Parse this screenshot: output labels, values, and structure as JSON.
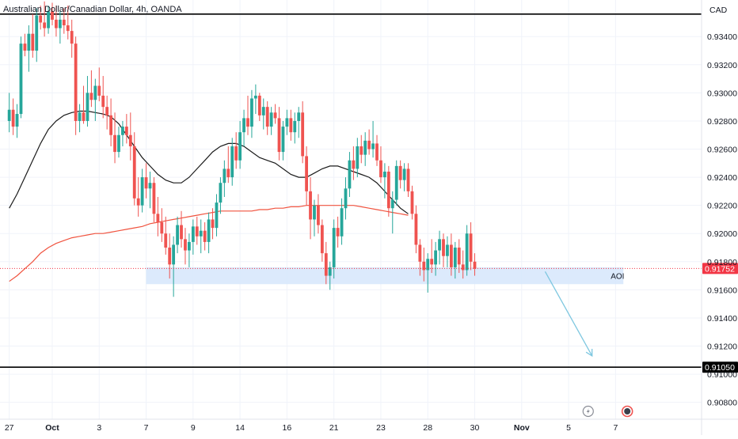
{
  "chart_data": {
    "type": "candlestick",
    "title": "Australian Dollar/Canadian Dollar, 4h, OANDA",
    "currency": "CAD",
    "ylim": [
      0.9068,
      0.9366
    ],
    "y_ticks": [
      "0.93400",
      "0.93200",
      "0.93000",
      "0.92800",
      "0.92600",
      "0.92400",
      "0.92200",
      "0.92000",
      "0.91800",
      "0.91600",
      "0.91400",
      "0.91200",
      "0.91000",
      "0.90800"
    ],
    "y_tick_values": [
      0.934,
      0.932,
      0.93,
      0.928,
      0.926,
      0.924,
      0.922,
      0.92,
      0.918,
      0.916,
      0.914,
      0.912,
      0.91,
      0.908
    ],
    "x_labels": [
      "27",
      "Oct",
      "3",
      "7",
      "9",
      "14",
      "16",
      "21",
      "23",
      "28",
      "30",
      "Nov",
      "5",
      "7"
    ],
    "x_label_index": [
      -11,
      0,
      12,
      24,
      36,
      48,
      60,
      72,
      84,
      96,
      108,
      120,
      132,
      144
    ],
    "colors": {
      "up": "#26a69a",
      "down": "#ef5350",
      "ma_fast": "#1b1b1b",
      "ma_slow": "#f0533f",
      "current": "#f23645",
      "aoi": "#d6e6fb",
      "arrow": "#7ec7e0",
      "hline": "#000000"
    },
    "current_price": {
      "value": 0.91752,
      "label": "0.91752"
    },
    "horizontal_lines": [
      {
        "value": 0.9356,
        "label": ""
      },
      {
        "value": 0.9105,
        "label": "0.91050"
      }
    ],
    "aoi_zone": {
      "label": "AOI",
      "from": 0.9164,
      "to": 0.9176,
      "start_index": 24,
      "end_index": 146
    },
    "projection_arrow": {
      "from": {
        "index": 126,
        "value": 0.9173
      },
      "to": {
        "index": 138,
        "value": 0.9113
      }
    },
    "candles": [
      {
        "o": 0.928,
        "h": 0.93,
        "l": 0.9272,
        "c": 0.9288
      },
      {
        "o": 0.9288,
        "h": 0.9296,
        "l": 0.927,
        "c": 0.9276
      },
      {
        "o": 0.9276,
        "h": 0.9292,
        "l": 0.9268,
        "c": 0.9285
      },
      {
        "o": 0.9285,
        "h": 0.934,
        "l": 0.9282,
        "c": 0.9335
      },
      {
        "o": 0.9335,
        "h": 0.9342,
        "l": 0.9326,
        "c": 0.933
      },
      {
        "o": 0.933,
        "h": 0.9348,
        "l": 0.9315,
        "c": 0.9342
      },
      {
        "o": 0.9342,
        "h": 0.9356,
        "l": 0.9325,
        "c": 0.933
      },
      {
        "o": 0.933,
        "h": 0.936,
        "l": 0.9322,
        "c": 0.9355
      },
      {
        "o": 0.9355,
        "h": 0.9362,
        "l": 0.9345,
        "c": 0.935
      },
      {
        "o": 0.935,
        "h": 0.9365,
        "l": 0.934,
        "c": 0.9346
      },
      {
        "o": 0.9346,
        "h": 0.9362,
        "l": 0.9342,
        "c": 0.9358
      },
      {
        "o": 0.9358,
        "h": 0.9364,
        "l": 0.9348,
        "c": 0.9352
      },
      {
        "o": 0.9352,
        "h": 0.9362,
        "l": 0.934,
        "c": 0.9346
      },
      {
        "o": 0.9346,
        "h": 0.9358,
        "l": 0.9335,
        "c": 0.9352
      },
      {
        "o": 0.9352,
        "h": 0.936,
        "l": 0.9342,
        "c": 0.9348
      },
      {
        "o": 0.9348,
        "h": 0.9362,
        "l": 0.9338,
        "c": 0.9344
      },
      {
        "o": 0.9344,
        "h": 0.9352,
        "l": 0.9325,
        "c": 0.9335
      },
      {
        "o": 0.9335,
        "h": 0.934,
        "l": 0.927,
        "c": 0.928
      },
      {
        "o": 0.928,
        "h": 0.9292,
        "l": 0.9272,
        "c": 0.9286
      },
      {
        "o": 0.9286,
        "h": 0.9305,
        "l": 0.9278,
        "c": 0.928
      },
      {
        "o": 0.928,
        "h": 0.9312,
        "l": 0.9276,
        "c": 0.93
      },
      {
        "o": 0.93,
        "h": 0.9316,
        "l": 0.929,
        "c": 0.9295
      },
      {
        "o": 0.9295,
        "h": 0.931,
        "l": 0.928,
        "c": 0.9305
      },
      {
        "o": 0.9305,
        "h": 0.9318,
        "l": 0.9294,
        "c": 0.9298
      },
      {
        "o": 0.9298,
        "h": 0.9312,
        "l": 0.9282,
        "c": 0.929
      },
      {
        "o": 0.929,
        "h": 0.9298,
        "l": 0.9274,
        "c": 0.9284
      },
      {
        "o": 0.9284,
        "h": 0.9296,
        "l": 0.9262,
        "c": 0.927
      },
      {
        "o": 0.927,
        "h": 0.9286,
        "l": 0.925,
        "c": 0.9258
      },
      {
        "o": 0.9258,
        "h": 0.9276,
        "l": 0.9254,
        "c": 0.927
      },
      {
        "o": 0.927,
        "h": 0.928,
        "l": 0.9262,
        "c": 0.9276
      },
      {
        "o": 0.9276,
        "h": 0.9285,
        "l": 0.9264,
        "c": 0.927
      },
      {
        "o": 0.927,
        "h": 0.9286,
        "l": 0.9252,
        "c": 0.9262
      },
      {
        "o": 0.9262,
        "h": 0.9272,
        "l": 0.922,
        "c": 0.9225
      },
      {
        "o": 0.9225,
        "h": 0.924,
        "l": 0.9212,
        "c": 0.922
      },
      {
        "o": 0.922,
        "h": 0.9246,
        "l": 0.9215,
        "c": 0.924
      },
      {
        "o": 0.924,
        "h": 0.925,
        "l": 0.9225,
        "c": 0.9232
      },
      {
        "o": 0.9232,
        "h": 0.9244,
        "l": 0.9218,
        "c": 0.9236
      },
      {
        "o": 0.9236,
        "h": 0.924,
        "l": 0.9208,
        "c": 0.9214
      },
      {
        "o": 0.9214,
        "h": 0.9226,
        "l": 0.9198,
        "c": 0.9208
      },
      {
        "o": 0.9208,
        "h": 0.9218,
        "l": 0.9194,
        "c": 0.92
      },
      {
        "o": 0.92,
        "h": 0.9212,
        "l": 0.9185,
        "c": 0.919
      },
      {
        "o": 0.919,
        "h": 0.92,
        "l": 0.9168,
        "c": 0.9178
      },
      {
        "o": 0.9178,
        "h": 0.9198,
        "l": 0.9155,
        "c": 0.9192
      },
      {
        "o": 0.9192,
        "h": 0.9212,
        "l": 0.9186,
        "c": 0.9206
      },
      {
        "o": 0.9206,
        "h": 0.9216,
        "l": 0.919,
        "c": 0.9196
      },
      {
        "o": 0.9196,
        "h": 0.9204,
        "l": 0.9178,
        "c": 0.9188
      },
      {
        "o": 0.9188,
        "h": 0.92,
        "l": 0.9176,
        "c": 0.9194
      },
      {
        "o": 0.9194,
        "h": 0.921,
        "l": 0.9185,
        "c": 0.9205
      },
      {
        "o": 0.9205,
        "h": 0.9212,
        "l": 0.9192,
        "c": 0.9198
      },
      {
        "o": 0.9198,
        "h": 0.921,
        "l": 0.9186,
        "c": 0.9202
      },
      {
        "o": 0.9202,
        "h": 0.9208,
        "l": 0.9188,
        "c": 0.9194
      },
      {
        "o": 0.9194,
        "h": 0.9215,
        "l": 0.9186,
        "c": 0.921
      },
      {
        "o": 0.921,
        "h": 0.9218,
        "l": 0.9196,
        "c": 0.9204
      },
      {
        "o": 0.9204,
        "h": 0.9228,
        "l": 0.9198,
        "c": 0.9222
      },
      {
        "o": 0.9222,
        "h": 0.924,
        "l": 0.9214,
        "c": 0.9236
      },
      {
        "o": 0.9236,
        "h": 0.9252,
        "l": 0.9226,
        "c": 0.9246
      },
      {
        "o": 0.9246,
        "h": 0.9262,
        "l": 0.9236,
        "c": 0.924
      },
      {
        "o": 0.924,
        "h": 0.9268,
        "l": 0.9234,
        "c": 0.9262
      },
      {
        "o": 0.9262,
        "h": 0.9272,
        "l": 0.9246,
        "c": 0.9252
      },
      {
        "o": 0.9252,
        "h": 0.928,
        "l": 0.9246,
        "c": 0.9272
      },
      {
        "o": 0.9272,
        "h": 0.9288,
        "l": 0.9262,
        "c": 0.9282
      },
      {
        "o": 0.9282,
        "h": 0.9298,
        "l": 0.927,
        "c": 0.9276
      },
      {
        "o": 0.9276,
        "h": 0.9302,
        "l": 0.9268,
        "c": 0.9296
      },
      {
        "o": 0.9296,
        "h": 0.9306,
        "l": 0.9285,
        "c": 0.9298
      },
      {
        "o": 0.9298,
        "h": 0.93,
        "l": 0.928,
        "c": 0.9284
      },
      {
        "o": 0.9284,
        "h": 0.9296,
        "l": 0.9274,
        "c": 0.929
      },
      {
        "o": 0.929,
        "h": 0.9294,
        "l": 0.927,
        "c": 0.9276
      },
      {
        "o": 0.9276,
        "h": 0.929,
        "l": 0.927,
        "c": 0.9286
      },
      {
        "o": 0.9286,
        "h": 0.9292,
        "l": 0.9278,
        "c": 0.9282
      },
      {
        "o": 0.9282,
        "h": 0.929,
        "l": 0.9252,
        "c": 0.9258
      },
      {
        "o": 0.9258,
        "h": 0.928,
        "l": 0.9252,
        "c": 0.9276
      },
      {
        "o": 0.9276,
        "h": 0.9288,
        "l": 0.927,
        "c": 0.9282
      },
      {
        "o": 0.9282,
        "h": 0.9288,
        "l": 0.9266,
        "c": 0.9272
      },
      {
        "o": 0.9272,
        "h": 0.9286,
        "l": 0.9264,
        "c": 0.928
      },
      {
        "o": 0.928,
        "h": 0.929,
        "l": 0.9268,
        "c": 0.9286
      },
      {
        "o": 0.9286,
        "h": 0.9294,
        "l": 0.925,
        "c": 0.9255
      },
      {
        "o": 0.9255,
        "h": 0.9262,
        "l": 0.922,
        "c": 0.923
      },
      {
        "o": 0.923,
        "h": 0.924,
        "l": 0.9196,
        "c": 0.921
      },
      {
        "o": 0.921,
        "h": 0.9224,
        "l": 0.9198,
        "c": 0.922
      },
      {
        "o": 0.922,
        "h": 0.9228,
        "l": 0.92,
        "c": 0.9206
      },
      {
        "o": 0.9206,
        "h": 0.921,
        "l": 0.918,
        "c": 0.9186
      },
      {
        "o": 0.9186,
        "h": 0.9194,
        "l": 0.9164,
        "c": 0.917
      },
      {
        "o": 0.917,
        "h": 0.918,
        "l": 0.916,
        "c": 0.9176
      },
      {
        "o": 0.9176,
        "h": 0.921,
        "l": 0.9168,
        "c": 0.9204
      },
      {
        "o": 0.9204,
        "h": 0.9212,
        "l": 0.919,
        "c": 0.9198
      },
      {
        "o": 0.9198,
        "h": 0.9225,
        "l": 0.9192,
        "c": 0.9218
      },
      {
        "o": 0.9218,
        "h": 0.924,
        "l": 0.921,
        "c": 0.9232
      },
      {
        "o": 0.9232,
        "h": 0.9258,
        "l": 0.9226,
        "c": 0.9252
      },
      {
        "o": 0.9252,
        "h": 0.9262,
        "l": 0.9238,
        "c": 0.9246
      },
      {
        "o": 0.9246,
        "h": 0.9268,
        "l": 0.924,
        "c": 0.9262
      },
      {
        "o": 0.9262,
        "h": 0.927,
        "l": 0.925,
        "c": 0.9256
      },
      {
        "o": 0.9256,
        "h": 0.9272,
        "l": 0.9248,
        "c": 0.9266
      },
      {
        "o": 0.9266,
        "h": 0.9274,
        "l": 0.9256,
        "c": 0.926
      },
      {
        "o": 0.926,
        "h": 0.928,
        "l": 0.9254,
        "c": 0.9264
      },
      {
        "o": 0.9264,
        "h": 0.927,
        "l": 0.9248,
        "c": 0.9252
      },
      {
        "o": 0.9252,
        "h": 0.9262,
        "l": 0.9236,
        "c": 0.924
      },
      {
        "o": 0.924,
        "h": 0.925,
        "l": 0.9225,
        "c": 0.9244
      },
      {
        "o": 0.9244,
        "h": 0.9248,
        "l": 0.9212,
        "c": 0.9218
      },
      {
        "o": 0.9218,
        "h": 0.923,
        "l": 0.92,
        "c": 0.9224
      },
      {
        "o": 0.9224,
        "h": 0.9252,
        "l": 0.922,
        "c": 0.9248
      },
      {
        "o": 0.9248,
        "h": 0.9252,
        "l": 0.9232,
        "c": 0.9238
      },
      {
        "o": 0.9238,
        "h": 0.925,
        "l": 0.923,
        "c": 0.9246
      },
      {
        "o": 0.9246,
        "h": 0.925,
        "l": 0.9226,
        "c": 0.923
      },
      {
        "o": 0.923,
        "h": 0.9234,
        "l": 0.921,
        "c": 0.9214
      },
      {
        "o": 0.9214,
        "h": 0.922,
        "l": 0.9186,
        "c": 0.9192
      },
      {
        "o": 0.9192,
        "h": 0.9196,
        "l": 0.917,
        "c": 0.918
      },
      {
        "o": 0.918,
        "h": 0.919,
        "l": 0.9166,
        "c": 0.9174
      },
      {
        "o": 0.9174,
        "h": 0.9186,
        "l": 0.9158,
        "c": 0.9182
      },
      {
        "o": 0.9182,
        "h": 0.9196,
        "l": 0.9172,
        "c": 0.9178
      },
      {
        "o": 0.9178,
        "h": 0.9194,
        "l": 0.917,
        "c": 0.9188
      },
      {
        "o": 0.9188,
        "h": 0.9202,
        "l": 0.9178,
        "c": 0.9196
      },
      {
        "o": 0.9196,
        "h": 0.92,
        "l": 0.9176,
        "c": 0.9184
      },
      {
        "o": 0.9184,
        "h": 0.9198,
        "l": 0.9176,
        "c": 0.9192
      },
      {
        "o": 0.9192,
        "h": 0.92,
        "l": 0.917,
        "c": 0.9176
      },
      {
        "o": 0.9176,
        "h": 0.9194,
        "l": 0.9168,
        "c": 0.919
      },
      {
        "o": 0.919,
        "h": 0.9196,
        "l": 0.9172,
        "c": 0.9178
      },
      {
        "o": 0.9178,
        "h": 0.9188,
        "l": 0.9168,
        "c": 0.9174
      },
      {
        "o": 0.9174,
        "h": 0.9206,
        "l": 0.917,
        "c": 0.92
      },
      {
        "o": 0.92,
        "h": 0.9208,
        "l": 0.9174,
        "c": 0.918
      },
      {
        "o": 0.918,
        "h": 0.9186,
        "l": 0.917,
        "c": 0.9175
      }
    ],
    "ma_fast": [
      [
        -11,
        0.9218
      ],
      [
        -9,
        0.9228
      ],
      [
        -7,
        0.924
      ],
      [
        -5,
        0.9252
      ],
      [
        -3,
        0.9264
      ],
      [
        -1,
        0.9274
      ],
      [
        1,
        0.928
      ],
      [
        3,
        0.9284
      ],
      [
        5,
        0.9286
      ],
      [
        7,
        0.9287
      ],
      [
        9,
        0.9287
      ],
      [
        11,
        0.9286
      ],
      [
        13,
        0.9285
      ],
      [
        15,
        0.9283
      ],
      [
        17,
        0.9278
      ],
      [
        19,
        0.927
      ],
      [
        21,
        0.9262
      ],
      [
        23,
        0.9254
      ],
      [
        25,
        0.9248
      ],
      [
        27,
        0.9242
      ],
      [
        29,
        0.9238
      ],
      [
        31,
        0.9236
      ],
      [
        33,
        0.9236
      ],
      [
        35,
        0.924
      ],
      [
        37,
        0.9246
      ],
      [
        39,
        0.9252
      ],
      [
        41,
        0.9258
      ],
      [
        43,
        0.9262
      ],
      [
        45,
        0.9264
      ],
      [
        47,
        0.9264
      ],
      [
        49,
        0.9262
      ],
      [
        51,
        0.9258
      ],
      [
        53,
        0.9254
      ],
      [
        55,
        0.9252
      ],
      [
        57,
        0.925
      ],
      [
        59,
        0.9246
      ],
      [
        61,
        0.9242
      ],
      [
        63,
        0.924
      ],
      [
        65,
        0.924
      ],
      [
        67,
        0.9243
      ],
      [
        69,
        0.9246
      ],
      [
        71,
        0.9248
      ],
      [
        73,
        0.9248
      ],
      [
        75,
        0.9246
      ],
      [
        77,
        0.9244
      ],
      [
        79,
        0.9242
      ],
      [
        81,
        0.924
      ],
      [
        83,
        0.9236
      ],
      [
        85,
        0.923
      ],
      [
        87,
        0.9224
      ],
      [
        89,
        0.9218
      ],
      [
        91,
        0.9214
      ]
    ],
    "ma_slow": [
      [
        -11,
        0.9166
      ],
      [
        -9,
        0.917
      ],
      [
        -7,
        0.9175
      ],
      [
        -5,
        0.918
      ],
      [
        -3,
        0.9186
      ],
      [
        -1,
        0.919
      ],
      [
        1,
        0.9193
      ],
      [
        3,
        0.9195
      ],
      [
        5,
        0.9197
      ],
      [
        7,
        0.9198
      ],
      [
        9,
        0.9199
      ],
      [
        11,
        0.92
      ],
      [
        13,
        0.92
      ],
      [
        15,
        0.9201
      ],
      [
        17,
        0.9202
      ],
      [
        19,
        0.9203
      ],
      [
        21,
        0.9204
      ],
      [
        23,
        0.9205
      ],
      [
        25,
        0.9207
      ],
      [
        27,
        0.9208
      ],
      [
        29,
        0.9209
      ],
      [
        31,
        0.921
      ],
      [
        33,
        0.9211
      ],
      [
        35,
        0.9212
      ],
      [
        37,
        0.9213
      ],
      [
        39,
        0.9214
      ],
      [
        41,
        0.9215
      ],
      [
        43,
        0.9216
      ],
      [
        45,
        0.9216
      ],
      [
        47,
        0.9216
      ],
      [
        49,
        0.9216
      ],
      [
        51,
        0.9216
      ],
      [
        53,
        0.9217
      ],
      [
        55,
        0.9217
      ],
      [
        57,
        0.9218
      ],
      [
        59,
        0.9218
      ],
      [
        61,
        0.9219
      ],
      [
        63,
        0.9219
      ],
      [
        65,
        0.922
      ],
      [
        67,
        0.922
      ],
      [
        69,
        0.922
      ],
      [
        71,
        0.922
      ],
      [
        73,
        0.922
      ],
      [
        75,
        0.922
      ],
      [
        77,
        0.922
      ],
      [
        79,
        0.9219
      ],
      [
        81,
        0.9218
      ],
      [
        83,
        0.9217
      ],
      [
        85,
        0.9216
      ],
      [
        87,
        0.9215
      ],
      [
        89,
        0.9214
      ],
      [
        91,
        0.9213
      ]
    ]
  },
  "icons": [
    {
      "name": "lightning-icon",
      "index": 137
    },
    {
      "name": "economic-event-icon",
      "index": 147
    }
  ]
}
